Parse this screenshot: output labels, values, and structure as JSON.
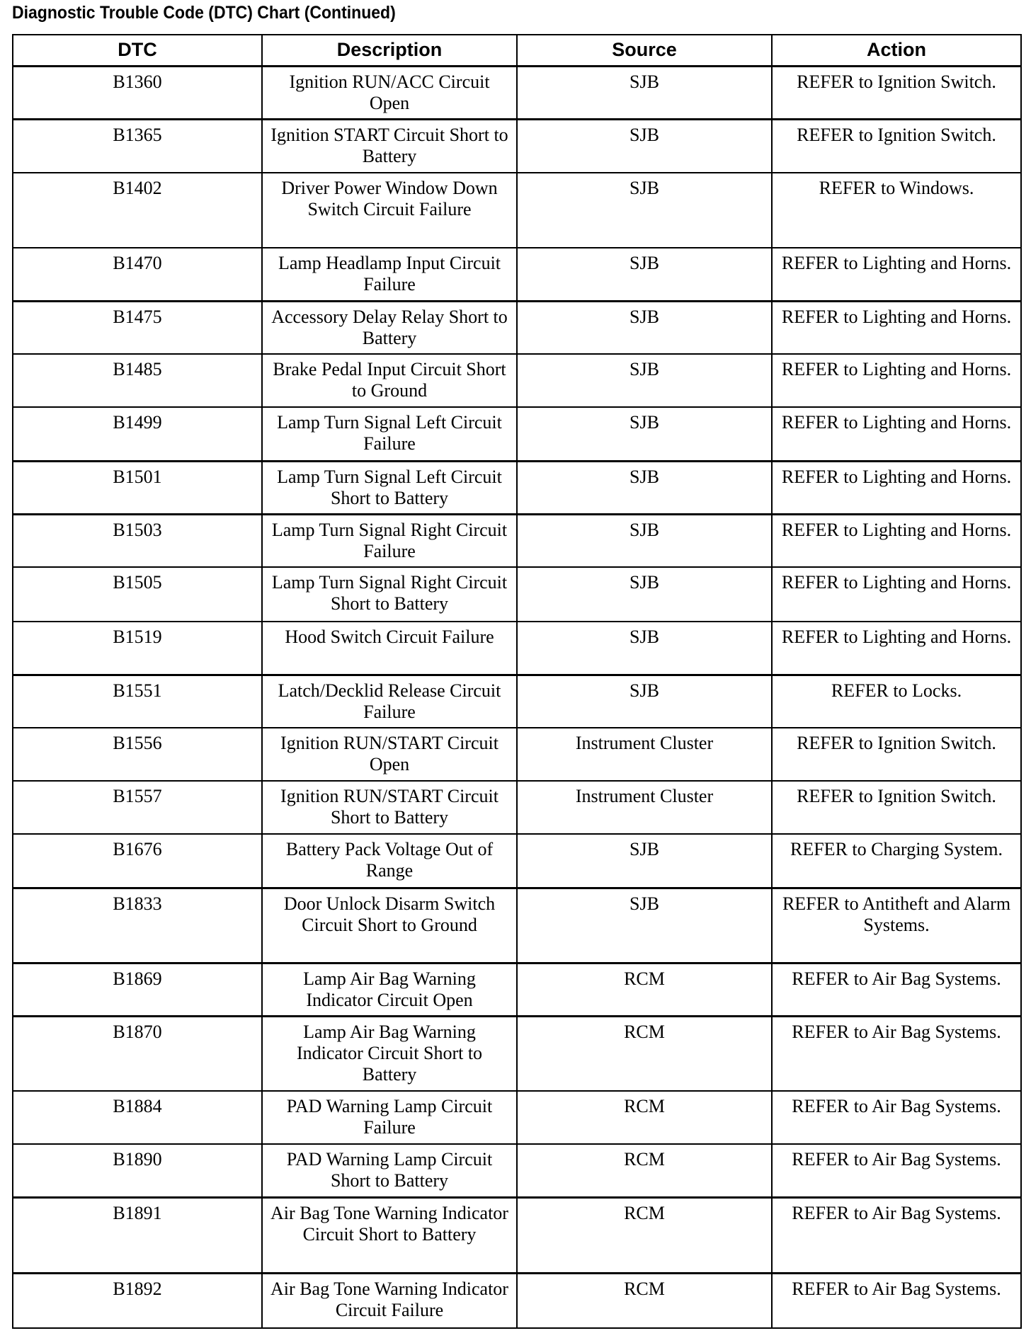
{
  "title": "Diagnostic Trouble Code (DTC) Chart (Continued)",
  "columns": [
    "DTC",
    "Description",
    "Source",
    "Action"
  ],
  "rows": [
    {
      "dtc": "B1360",
      "description": "Ignition RUN/ACC Circuit Open",
      "source": "SJB",
      "action": "REFER to Ignition Switch."
    },
    {
      "dtc": "B1365",
      "description": "Ignition START Circuit Short to Battery",
      "source": "SJB",
      "action": "REFER to Ignition Switch."
    },
    {
      "dtc": "B1402",
      "description": "Driver Power Window Down Switch Circuit Failure",
      "source": "SJB",
      "action": "REFER to Windows."
    },
    {
      "dtc": "B1470",
      "description": "Lamp Headlamp Input Circuit Failure",
      "source": "SJB",
      "action": "REFER to Lighting and Horns."
    },
    {
      "dtc": "B1475",
      "description": "Accessory Delay Relay Short to Battery",
      "source": "SJB",
      "action": "REFER to Lighting and Horns."
    },
    {
      "dtc": "B1485",
      "description": "Brake Pedal Input Circuit Short to Ground",
      "source": "SJB",
      "action": "REFER to Lighting and Horns."
    },
    {
      "dtc": "B1499",
      "description": "Lamp Turn Signal Left Circuit Failure",
      "source": "SJB",
      "action": "REFER to Lighting and Horns."
    },
    {
      "dtc": "B1501",
      "description": "Lamp Turn Signal Left Circuit Short to Battery",
      "source": "SJB",
      "action": "REFER to Lighting and Horns."
    },
    {
      "dtc": "B1503",
      "description": "Lamp Turn Signal Right Circuit Failure",
      "source": "SJB",
      "action": "REFER to Lighting and Horns."
    },
    {
      "dtc": "B1505",
      "description": "Lamp Turn Signal Right Circuit Short to Battery",
      "source": "SJB",
      "action": "REFER to Lighting and Horns."
    },
    {
      "dtc": "B1519",
      "description": "Hood Switch Circuit Failure",
      "source": "SJB",
      "action": "REFER to Lighting and Horns."
    },
    {
      "dtc": "B1551",
      "description": "Latch/Decklid Release Circuit Failure",
      "source": "SJB",
      "action": "REFER to Locks."
    },
    {
      "dtc": "B1556",
      "description": "Ignition RUN/START Circuit Open",
      "source": "Instrument Cluster",
      "action": "REFER to Ignition Switch."
    },
    {
      "dtc": "B1557",
      "description": "Ignition RUN/START Circuit Short to Battery",
      "source": "Instrument Cluster",
      "action": "REFER to Ignition Switch."
    },
    {
      "dtc": "B1676",
      "description": "Battery Pack Voltage Out of Range",
      "source": "SJB",
      "action": "REFER to Charging System."
    },
    {
      "dtc": "B1833",
      "description": "Door Unlock Disarm Switch Circuit Short to Ground",
      "source": "SJB",
      "action": "REFER to Antitheft and Alarm Systems."
    },
    {
      "dtc": "B1869",
      "description": "Lamp Air Bag Warning Indicator Circuit Open",
      "source": "RCM",
      "action": "REFER to Air Bag Systems."
    },
    {
      "dtc": "B1870",
      "description": "Lamp Air Bag Warning Indicator Circuit Short to Battery",
      "source": "RCM",
      "action": "REFER to Air Bag Systems."
    },
    {
      "dtc": "B1884",
      "description": "PAD Warning Lamp Circuit Failure",
      "source": "RCM",
      "action": "REFER to Air Bag Systems."
    },
    {
      "dtc": "B1890",
      "description": "PAD Warning Lamp Circuit Short to Battery",
      "source": "RCM",
      "action": "REFER to Air Bag Systems."
    },
    {
      "dtc": "B1891",
      "description": "Air Bag Tone Warning Indicator Circuit Short to Battery",
      "source": "RCM",
      "action": "REFER to Air Bag Systems."
    },
    {
      "dtc": "B1892",
      "description": "Air Bag Tone Warning Indicator Circuit Failure",
      "source": "RCM",
      "action": "REFER to Air Bag Systems."
    }
  ]
}
